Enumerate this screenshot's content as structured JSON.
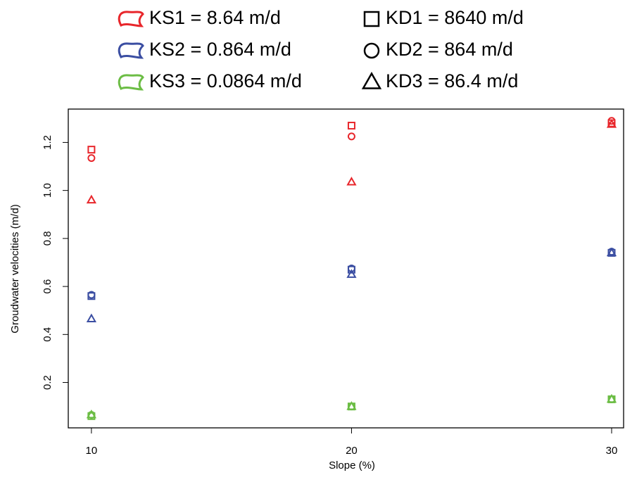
{
  "chart_data": {
    "type": "scatter",
    "x_label": "Slope (%)",
    "y_label": "Groudwater velocities (m/d)",
    "x": [
      10,
      20,
      30
    ],
    "xlim": [
      9.11,
      30.46
    ],
    "xticks": [
      10,
      20,
      30
    ],
    "ylim": [
      0.011,
      1.339
    ],
    "yticks": [
      0.2,
      0.4,
      0.6,
      0.8,
      {
        "value": 1.0,
        "label": "1.0"
      },
      1.2
    ],
    "markers": [
      {
        "name": "KD1 = 8640 m/d",
        "shape": "square"
      },
      {
        "name": "KD2 = 864 m/d",
        "shape": "circle"
      },
      {
        "name": "KD3 = 86.4 m/d",
        "shape": "triangle"
      }
    ],
    "series": [
      {
        "name": "KS1 = 8.64 m/d",
        "color": "#e8262b",
        "values": [
          [
            1.17,
            1.27,
            1.28
          ],
          [
            1.135,
            1.225,
            1.29
          ],
          [
            0.96,
            1.035,
            1.275
          ]
        ]
      },
      {
        "name": "KS2 = 0.864 m/d",
        "color": "#3b4ea2",
        "values": [
          [
            0.56,
            0.67,
            0.74
          ],
          [
            0.565,
            0.675,
            0.745
          ],
          [
            0.465,
            0.65,
            0.74
          ]
        ]
      },
      {
        "name": "KS3 = 0.0864 m/d",
        "color": "#6cbd45",
        "values": [
          [
            0.06,
            0.1,
            0.13
          ],
          [
            0.065,
            0.1,
            0.13
          ],
          [
            0.065,
            0.1,
            0.13
          ]
        ]
      }
    ]
  }
}
